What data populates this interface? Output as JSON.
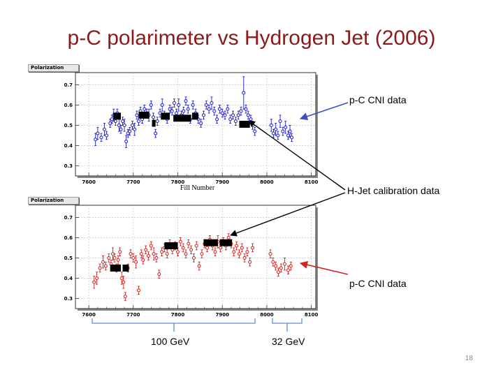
{
  "slide": {
    "title": "p-C polarimeter vs Hydrogen Jet (2006)",
    "page_number": "18"
  },
  "annotations": {
    "top_callout": "p-C CNI data",
    "middle_callout": "H-Jet calibration data",
    "bottom_callout": "p-C CNI data",
    "energy_left": "100 GeV",
    "energy_right": "32 GeV"
  },
  "colors": {
    "title": "#8b1a1a",
    "top_series": "#1c1ccc",
    "bottom_series": "#d42020",
    "hjet": "#000000",
    "arrow_blue": "#3a4fc8",
    "arrow_red": "#d42020"
  },
  "chart_data": [
    {
      "type": "scatter",
      "panel_tag": "Polarization",
      "xlabel": "Fill Number",
      "xlim": [
        7570,
        8110
      ],
      "ylim": [
        0.25,
        0.76
      ],
      "xticks": [
        "7600",
        "7700",
        "7800",
        "7900",
        "8000",
        "8100"
      ],
      "yticks": [
        "0.3",
        "0.4",
        "0.5",
        "0.6",
        "0.7"
      ],
      "grid": true,
      "series": [
        {
          "marker": "open-circle",
          "points": [
            [
              7615,
              0.43,
              0.03
            ],
            [
              7620,
              0.46,
              0.03
            ],
            [
              7628,
              0.44,
              0.02
            ],
            [
              7635,
              0.48,
              0.03
            ],
            [
              7640,
              0.45,
              0.02
            ],
            [
              7648,
              0.51,
              0.02
            ],
            [
              7652,
              0.53,
              0.02
            ],
            [
              7656,
              0.55,
              0.03
            ],
            [
              7660,
              0.52,
              0.02
            ],
            [
              7664,
              0.56,
              0.02
            ],
            [
              7668,
              0.5,
              0.03
            ],
            [
              7672,
              0.48,
              0.02
            ],
            [
              7676,
              0.52,
              0.02
            ],
            [
              7680,
              0.5,
              0.03
            ],
            [
              7684,
              0.42,
              0.03
            ],
            [
              7688,
              0.46,
              0.02
            ],
            [
              7692,
              0.47,
              0.02
            ],
            [
              7698,
              0.5,
              0.02
            ],
            [
              7703,
              0.48,
              0.03
            ],
            [
              7708,
              0.55,
              0.02
            ],
            [
              7712,
              0.52,
              0.02
            ],
            [
              7716,
              0.57,
              0.02
            ],
            [
              7720,
              0.53,
              0.02
            ],
            [
              7725,
              0.58,
              0.02
            ],
            [
              7730,
              0.56,
              0.02
            ],
            [
              7735,
              0.55,
              0.03
            ],
            [
              7740,
              0.6,
              0.02
            ],
            [
              7745,
              0.54,
              0.02
            ],
            [
              7750,
              0.46,
              0.02
            ],
            [
              7754,
              0.52,
              0.02
            ],
            [
              7760,
              0.56,
              0.02
            ],
            [
              7765,
              0.6,
              0.03
            ],
            [
              7770,
              0.55,
              0.02
            ],
            [
              7776,
              0.53,
              0.02
            ],
            [
              7782,
              0.58,
              0.02
            ],
            [
              7787,
              0.57,
              0.02
            ],
            [
              7792,
              0.61,
              0.02
            ],
            [
              7797,
              0.56,
              0.02
            ],
            [
              7802,
              0.6,
              0.03
            ],
            [
              7808,
              0.55,
              0.02
            ],
            [
              7813,
              0.57,
              0.02
            ],
            [
              7818,
              0.62,
              0.02
            ],
            [
              7823,
              0.58,
              0.02
            ],
            [
              7828,
              0.53,
              0.02
            ],
            [
              7834,
              0.6,
              0.02
            ],
            [
              7840,
              0.56,
              0.02
            ],
            [
              7846,
              0.53,
              0.02
            ],
            [
              7852,
              0.51,
              0.02
            ],
            [
              7858,
              0.55,
              0.02
            ],
            [
              7864,
              0.6,
              0.02
            ],
            [
              7870,
              0.58,
              0.02
            ],
            [
              7876,
              0.61,
              0.03
            ],
            [
              7882,
              0.57,
              0.02
            ],
            [
              7888,
              0.53,
              0.02
            ],
            [
              7894,
              0.58,
              0.02
            ],
            [
              7900,
              0.56,
              0.02
            ],
            [
              7906,
              0.55,
              0.02
            ],
            [
              7912,
              0.58,
              0.02
            ],
            [
              7918,
              0.53,
              0.02
            ],
            [
              7924,
              0.55,
              0.02
            ],
            [
              7930,
              0.52,
              0.02
            ],
            [
              7936,
              0.55,
              0.02
            ],
            [
              7942,
              0.57,
              0.02
            ],
            [
              7948,
              0.66,
              0.08
            ],
            [
              7953,
              0.58,
              0.02
            ],
            [
              7958,
              0.55,
              0.02
            ],
            [
              7964,
              0.53,
              0.02
            ],
            [
              7968,
              0.5,
              0.02
            ],
            [
              7973,
              0.47,
              0.02
            ],
            [
              8010,
              0.5,
              0.03
            ],
            [
              8015,
              0.46,
              0.02
            ],
            [
              8020,
              0.48,
              0.03
            ],
            [
              8025,
              0.45,
              0.02
            ],
            [
              8030,
              0.52,
              0.03
            ],
            [
              8036,
              0.47,
              0.02
            ],
            [
              8042,
              0.49,
              0.03
            ],
            [
              8048,
              0.45,
              0.02
            ],
            [
              8052,
              0.47,
              0.03
            ],
            [
              8056,
              0.44,
              0.02
            ]
          ]
        }
      ],
      "hjet_bands": [
        [
          7655,
          7672,
          0.545
        ],
        [
          7712,
          7736,
          0.55
        ],
        [
          7742,
          7750,
          0.51
        ],
        [
          7762,
          7782,
          0.545
        ],
        [
          7790,
          7830,
          0.535
        ],
        [
          7832,
          7846,
          0.545
        ],
        [
          7938,
          7962,
          0.505
        ]
      ]
    },
    {
      "type": "scatter",
      "panel_tag": "Polarization",
      "xlabel": "",
      "xlim": [
        7570,
        8110
      ],
      "ylim": [
        0.25,
        0.76
      ],
      "xticks": [
        "7600",
        "7700",
        "7800",
        "7900",
        "8000",
        "8100"
      ],
      "yticks": [
        "0.3",
        "0.4",
        "0.5",
        "0.6",
        "0.7"
      ],
      "grid": true,
      "series": [
        {
          "marker": "open-circle",
          "points": [
            [
              7612,
              0.38,
              0.03
            ],
            [
              7618,
              0.4,
              0.03
            ],
            [
              7625,
              0.45,
              0.02
            ],
            [
              7632,
              0.48,
              0.03
            ],
            [
              7638,
              0.46,
              0.02
            ],
            [
              7645,
              0.5,
              0.02
            ],
            [
              7650,
              0.47,
              0.02
            ],
            [
              7654,
              0.52,
              0.03
            ],
            [
              7658,
              0.5,
              0.02
            ],
            [
              7662,
              0.45,
              0.02
            ],
            [
              7666,
              0.49,
              0.02
            ],
            [
              7670,
              0.53,
              0.02
            ],
            [
              7674,
              0.4,
              0.03
            ],
            [
              7678,
              0.38,
              0.03
            ],
            [
              7682,
              0.31,
              0.02
            ],
            [
              7688,
              0.45,
              0.02
            ],
            [
              7694,
              0.52,
              0.02
            ],
            [
              7700,
              0.5,
              0.02
            ],
            [
              7706,
              0.48,
              0.03
            ],
            [
              7712,
              0.34,
              0.02
            ],
            [
              7718,
              0.52,
              0.02
            ],
            [
              7722,
              0.49,
              0.02
            ],
            [
              7728,
              0.54,
              0.02
            ],
            [
              7734,
              0.51,
              0.02
            ],
            [
              7740,
              0.56,
              0.02
            ],
            [
              7746,
              0.52,
              0.03
            ],
            [
              7752,
              0.5,
              0.02
            ],
            [
              7758,
              0.42,
              0.02
            ],
            [
              7764,
              0.53,
              0.02
            ],
            [
              7770,
              0.55,
              0.02
            ],
            [
              7776,
              0.52,
              0.02
            ],
            [
              7782,
              0.57,
              0.02
            ],
            [
              7788,
              0.54,
              0.02
            ],
            [
              7794,
              0.56,
              0.02
            ],
            [
              7800,
              0.53,
              0.02
            ],
            [
              7806,
              0.58,
              0.02
            ],
            [
              7812,
              0.55,
              0.02
            ],
            [
              7818,
              0.52,
              0.02
            ],
            [
              7824,
              0.57,
              0.02
            ],
            [
              7830,
              0.54,
              0.02
            ],
            [
              7836,
              0.5,
              0.02
            ],
            [
              7842,
              0.56,
              0.02
            ],
            [
              7848,
              0.46,
              0.02
            ],
            [
              7854,
              0.52,
              0.02
            ],
            [
              7860,
              0.57,
              0.02
            ],
            [
              7866,
              0.55,
              0.02
            ],
            [
              7872,
              0.59,
              0.02
            ],
            [
              7878,
              0.56,
              0.02
            ],
            [
              7884,
              0.53,
              0.02
            ],
            [
              7890,
              0.58,
              0.03
            ],
            [
              7896,
              0.55,
              0.02
            ],
            [
              7902,
              0.58,
              0.02
            ],
            [
              7908,
              0.56,
              0.02
            ],
            [
              7914,
              0.6,
              0.02
            ],
            [
              7920,
              0.57,
              0.02
            ],
            [
              7926,
              0.53,
              0.02
            ],
            [
              7932,
              0.56,
              0.02
            ],
            [
              7938,
              0.52,
              0.02
            ],
            [
              7944,
              0.55,
              0.02
            ],
            [
              7950,
              0.5,
              0.02
            ],
            [
              7956,
              0.53,
              0.02
            ],
            [
              7962,
              0.48,
              0.02
            ],
            [
              7968,
              0.55,
              0.02
            ],
            [
              8008,
              0.52,
              0.02
            ],
            [
              8014,
              0.48,
              0.02
            ],
            [
              8020,
              0.46,
              0.02
            ],
            [
              8026,
              0.43,
              0.02
            ],
            [
              8032,
              0.45,
              0.02
            ],
            [
              8040,
              0.47,
              0.03
            ],
            [
              8048,
              0.44,
              0.02
            ],
            [
              8054,
              0.46,
              0.02
            ]
          ]
        }
      ],
      "hjet_bands": [
        [
          7648,
          7672,
          0.45
        ],
        [
          7676,
          7690,
          0.45
        ],
        [
          7770,
          7800,
          0.56
        ],
        [
          7858,
          7890,
          0.575
        ],
        [
          7894,
          7922,
          0.575
        ]
      ]
    }
  ]
}
